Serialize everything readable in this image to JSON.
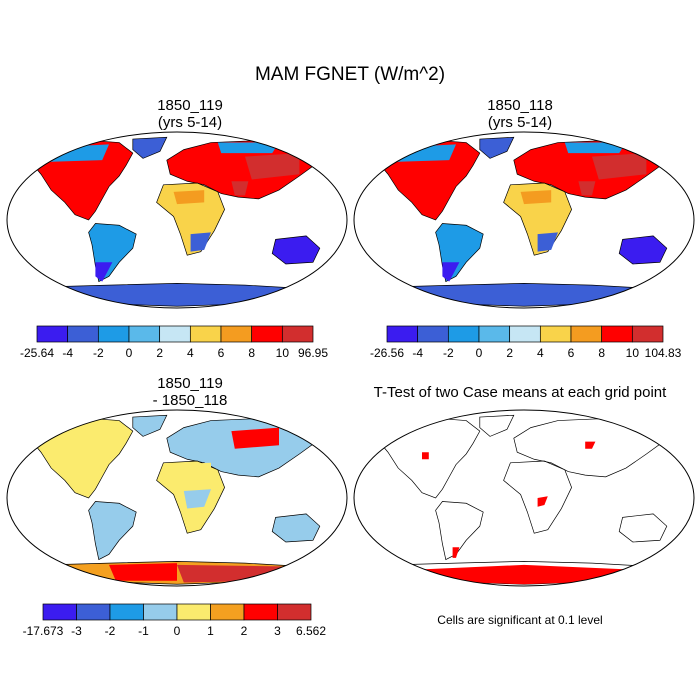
{
  "title": "MAM FGNET (W/m^2)",
  "chart_data": [
    {
      "type": "heatmap",
      "panel": "top-left",
      "title_lines": [
        "1850_119",
        "(yrs 5-14)"
      ],
      "projection": "robinson",
      "colorbar": {
        "colors": [
          "#3b1cf0",
          "#3c5fd6",
          "#1e9be6",
          "#5ab9ea",
          "#c6e6f4",
          "#f9d34a",
          "#f49c20",
          "#ff0000",
          "#d22e2e"
        ],
        "labels": [
          "-25.64",
          "-4",
          "-2",
          "0",
          "2",
          "4",
          "6",
          "8",
          "10",
          "96.95"
        ]
      }
    },
    {
      "type": "heatmap",
      "panel": "top-right",
      "title_lines": [
        "1850_118",
        "(yrs 5-14)"
      ],
      "projection": "robinson",
      "colorbar": {
        "colors": [
          "#3b1cf0",
          "#3c5fd6",
          "#1e9be6",
          "#5ab9ea",
          "#c6e6f4",
          "#f9d34a",
          "#f49c20",
          "#ff0000",
          "#d22e2e"
        ],
        "labels": [
          "-26.56",
          "-4",
          "-2",
          "0",
          "2",
          "4",
          "6",
          "8",
          "10",
          "104.83"
        ]
      }
    },
    {
      "type": "heatmap",
      "panel": "bottom-left",
      "title_lines": [
        "1850_119",
        "- 1850_118"
      ],
      "projection": "robinson",
      "colorbar": {
        "colors": [
          "#3b1cf0",
          "#3c5fd6",
          "#1e9be6",
          "#96cceb",
          "#fbeb6e",
          "#f4a020",
          "#ff0000",
          "#d22e2e"
        ],
        "labels": [
          "-17.673",
          "-3",
          "-2",
          "-1",
          "0",
          "1",
          "2",
          "3",
          "6.562"
        ]
      }
    },
    {
      "type": "heatmap",
      "panel": "bottom-right",
      "title_lines": [
        "T-Test of two Case means at each grid point"
      ],
      "projection": "robinson",
      "significance_color": "#ff0000",
      "note": "Cells are significant at 0.1 level"
    }
  ],
  "panels": {
    "p1": {
      "t1": "1850_119",
      "t2": "(yrs 5-14)"
    },
    "p2": {
      "t1": "1850_118",
      "t2": "(yrs 5-14)"
    },
    "p3": {
      "t1": "1850_119",
      "t2": "- 1850_118"
    },
    "p4": {
      "t1": "T-Test of two Case means at each grid point",
      "note": "Cells are significant at 0.1 level"
    }
  },
  "colors": {
    "ocean": "#ffffff",
    "coastline": "#000000"
  }
}
